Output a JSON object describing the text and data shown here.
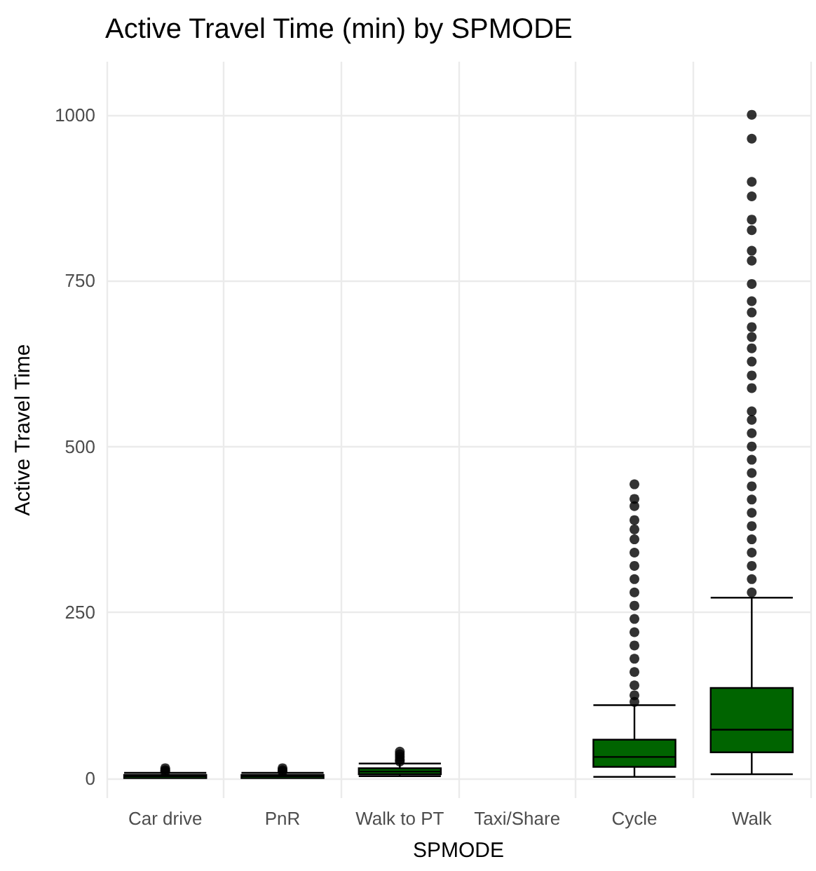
{
  "chart_data": {
    "type": "box",
    "title": "Active Travel Time (min) by SPMODE",
    "xlabel": "SPMODE",
    "ylabel": "Active Travel Time",
    "categories": [
      "Car drive",
      "PnR",
      "Walk to PT",
      "Taxi/Share",
      "Cycle",
      "Walk"
    ],
    "series": [
      {
        "color": "#006400",
        "boxes": [
          {
            "low": 0,
            "q1": 0,
            "median": 3,
            "q3": 5,
            "high": 8,
            "outliers": [
              10,
              12,
              15
            ]
          },
          {
            "low": 0,
            "q1": 0,
            "median": 3,
            "q3": 5,
            "high": 8,
            "outliers": [
              10,
              12,
              15
            ]
          },
          {
            "low": 3,
            "q1": 6,
            "median": 10,
            "q3": 15,
            "high": 22,
            "outliers": [
              25,
              28,
              32,
              36,
              40
            ]
          },
          null,
          {
            "low": 2,
            "q1": 17,
            "median": 32,
            "q3": 58,
            "high": 110,
            "outliers": [
              115,
              125,
              140,
              160,
              180,
              200,
              220,
              240,
              260,
              280,
              300,
              320,
              340,
              360,
              375,
              389,
              410,
              421,
              443
            ]
          },
          {
            "low": 6,
            "q1": 39,
            "median": 73,
            "q3": 136,
            "high": 272,
            "outliers": [
              280,
              300,
              320,
              340,
              360,
              380,
              400,
              420,
              440,
              460,
              480,
              500,
              520,
              540,
              553,
              588,
              607,
              628,
              648,
              665,
              680,
              702,
              719,
              745,
              780,
              795,
              826,
              842,
              877,
              899,
              964,
              1000
            ]
          }
        ]
      }
    ],
    "ylim": [
      -30,
      1080
    ],
    "yticks": [
      0,
      250,
      500,
      750,
      1000
    ],
    "grid": true
  }
}
